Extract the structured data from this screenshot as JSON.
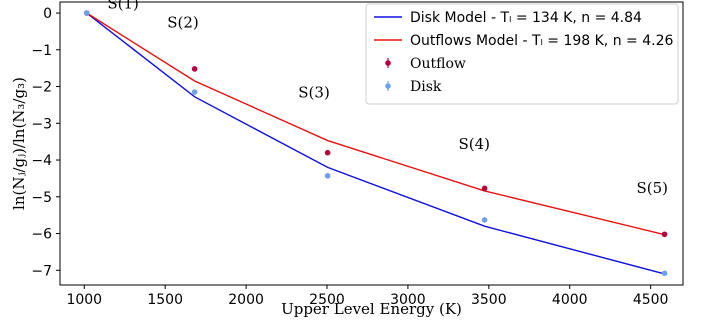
{
  "chart_data": {
    "type": "scatter",
    "title": "",
    "xlabel": "Upper Level Energy (K)",
    "ylabel": "ln(Nⱼ/gⱼ)/ln(N₃/g₃)",
    "xlim": [
      850,
      4700
    ],
    "ylim": [
      -7.4,
      0.3
    ],
    "x_ticks": [
      1000,
      1500,
      2000,
      2500,
      3000,
      3500,
      4000,
      4500
    ],
    "y_ticks": [
      0,
      -1,
      -2,
      -3,
      -4,
      -5,
      -6,
      -7
    ],
    "grid": false,
    "legend_placement": "top-right",
    "series": [
      {
        "name": "Disk Model - Tₗ = 134 K, n = 4.84",
        "kind": "line",
        "color": "#1010e0",
        "x": [
          1015,
          1682,
          2504,
          3474,
          4586
        ],
        "y": [
          0,
          -2.28,
          -4.2,
          -5.8,
          -7.1
        ]
      },
      {
        "name": "Outflows Model - Tₗ = 198 K, n = 4.26",
        "kind": "line",
        "color": "#e81010",
        "x": [
          1015,
          1682,
          2504,
          3474,
          4586
        ],
        "y": [
          0,
          -1.85,
          -3.47,
          -4.84,
          -6.03
        ]
      },
      {
        "name": "Outflow",
        "kind": "points",
        "color": "#b5003c",
        "x": [
          1015,
          1682,
          2504,
          3474,
          4586
        ],
        "y": [
          0,
          -1.52,
          -3.8,
          -4.77,
          -6.02
        ]
      },
      {
        "name": "Disk",
        "kind": "points",
        "color": "#6da0e8",
        "x": [
          1015,
          1682,
          2504,
          3474,
          4586
        ],
        "y": [
          0,
          -2.15,
          -4.43,
          -5.63,
          -7.08
        ]
      }
    ],
    "annotations": [
      {
        "text": "S(1)",
        "x": 1240,
        "y": 0.12
      },
      {
        "text": "S(2)",
        "x": 1610,
        "y": -0.4
      },
      {
        "text": "S(3)",
        "x": 2420,
        "y": -2.3
      },
      {
        "text": "S(4)",
        "x": 3410,
        "y": -3.7
      },
      {
        "text": "S(5)",
        "x": 4510,
        "y": -4.9
      }
    ]
  }
}
